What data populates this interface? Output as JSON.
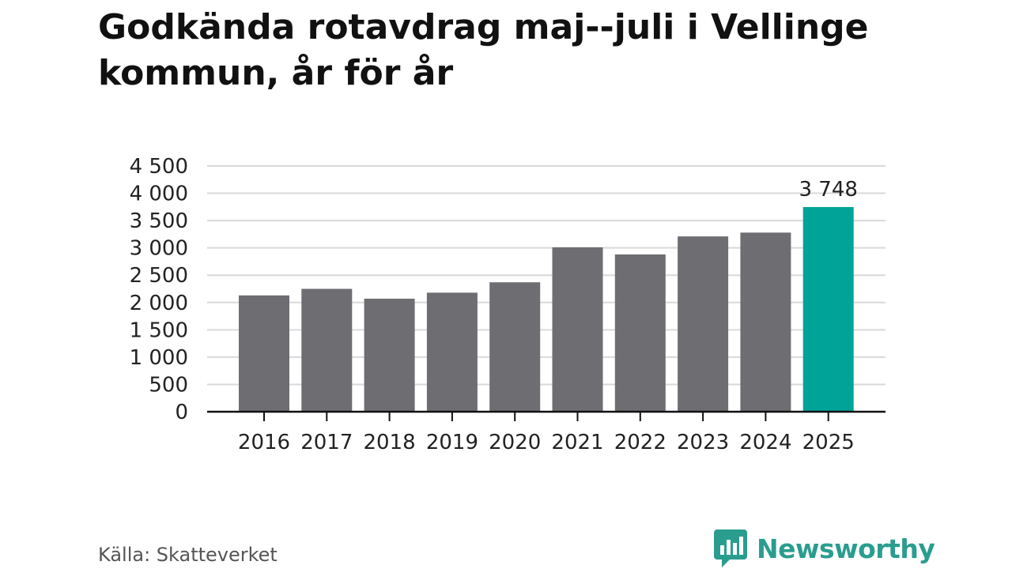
{
  "header": {
    "title": "Godkända rotavdrag maj--juli i Vellinge kommun, år för år"
  },
  "footer": {
    "source": "Källa: Skatteverket",
    "brand": "Newsworthy",
    "brand_icon": "chat-bubble-bar-chart-icon"
  },
  "colors": {
    "bar": "#6e6d72",
    "highlight": "#00a398",
    "brand": "#2a9d8f",
    "grid": "#d9d9d9",
    "axis": "#111111",
    "text": "#222222"
  },
  "chart_data": {
    "type": "bar",
    "title": "Godkända rotavdrag maj--juli i Vellinge kommun, år för år",
    "xlabel": "",
    "ylabel": "",
    "categories": [
      "2016",
      "2017",
      "2018",
      "2019",
      "2020",
      "2021",
      "2022",
      "2023",
      "2024",
      "2025"
    ],
    "values": [
      2130,
      2250,
      2070,
      2180,
      2370,
      3010,
      2880,
      3210,
      3280,
      3748
    ],
    "highlight_index": 9,
    "data_labels": [
      {
        "index": 9,
        "text": "3 748"
      }
    ],
    "ylim": [
      0,
      4500
    ],
    "yticks": [
      0,
      500,
      1000,
      1500,
      2000,
      2500,
      3000,
      3500,
      4000,
      4500
    ],
    "ytick_labels": [
      "0",
      "500",
      "1 000",
      "1 500",
      "2 000",
      "2 500",
      "3 000",
      "3 500",
      "4 000",
      "4 500"
    ],
    "grid": true,
    "legend": "none"
  }
}
